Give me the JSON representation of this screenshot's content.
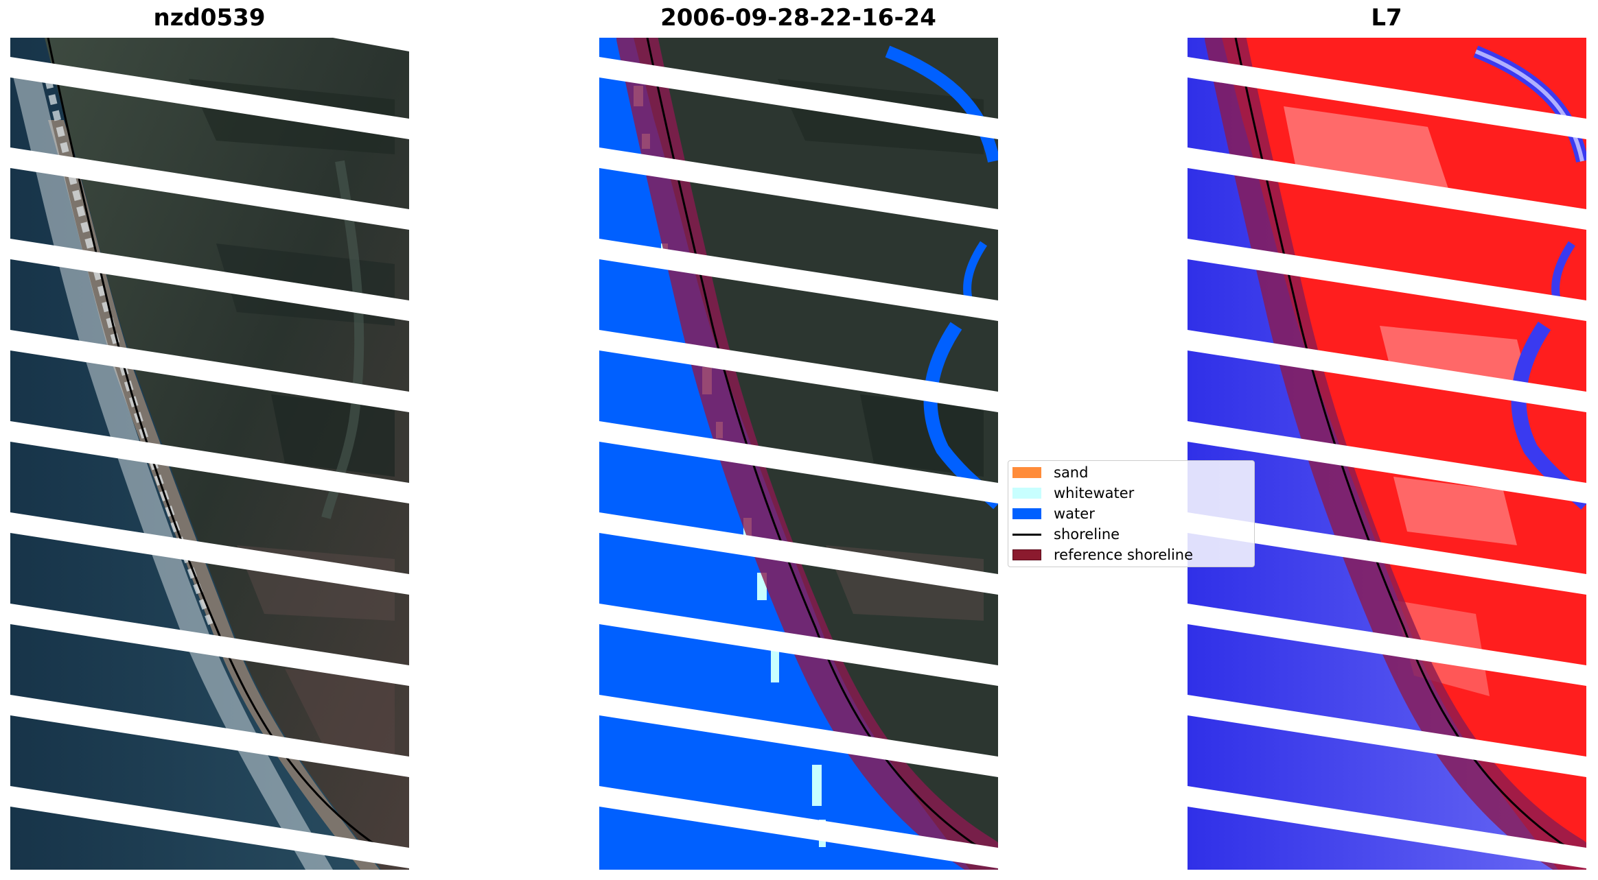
{
  "panels": [
    {
      "title": "nzd0539"
    },
    {
      "title": "2006-09-28-22-16-24"
    },
    {
      "title": "L7"
    }
  ],
  "legend": {
    "items": [
      {
        "label": "sand",
        "color": "#ff8c3a",
        "kind": "patch"
      },
      {
        "label": "whitewater",
        "color": "#c8ffff",
        "kind": "patch"
      },
      {
        "label": "water",
        "color": "#0060ff",
        "kind": "patch"
      },
      {
        "label": "shoreline",
        "color": "#000000",
        "kind": "line"
      },
      {
        "label": "reference shoreline",
        "color": "#8b1a2e",
        "kind": "patch"
      }
    ]
  },
  "colors": {
    "ocean": "#1c3c52",
    "land_dark": "#26302c",
    "land_mid": "#4a544a",
    "beach": "#8a7f74",
    "surf": "#d8e0e4",
    "water_class": "#0060ff",
    "whitewater_class": "#c8ffff",
    "index_land": "#ff2020",
    "index_water": "#3a3af0",
    "reference_band": "#8b1a50",
    "gap_stripe": "#ffffff"
  }
}
